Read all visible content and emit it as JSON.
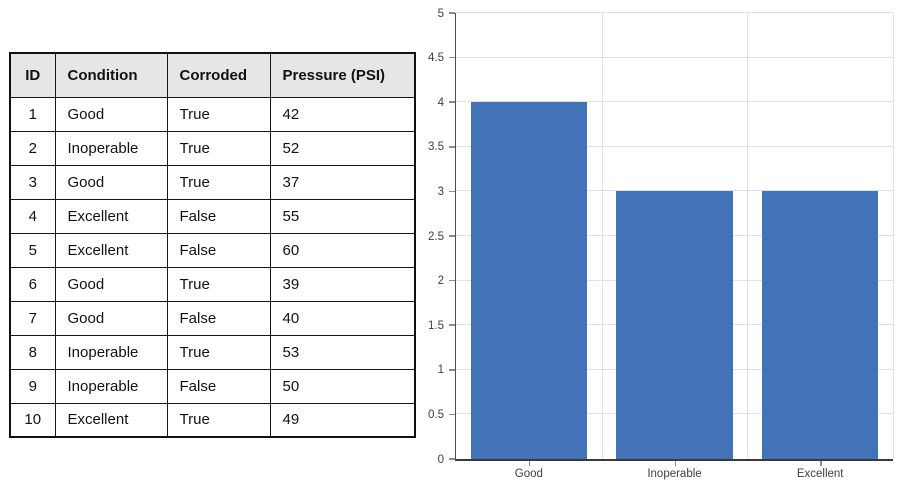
{
  "table": {
    "headers": [
      "ID",
      "Condition",
      "Corroded",
      "Pressure (PSI)"
    ],
    "rows": [
      [
        "1",
        "Good",
        "True",
        "42"
      ],
      [
        "2",
        "Inoperable",
        "True",
        "52"
      ],
      [
        "3",
        "Good",
        "True",
        "37"
      ],
      [
        "4",
        "Excellent",
        "False",
        "55"
      ],
      [
        "5",
        "Excellent",
        "False",
        "60"
      ],
      [
        "6",
        "Good",
        "True",
        "39"
      ],
      [
        "7",
        "Good",
        "False",
        "40"
      ],
      [
        "8",
        "Inoperable",
        "True",
        "53"
      ],
      [
        "9",
        "Inoperable",
        "False",
        "50"
      ],
      [
        "10",
        "Excellent",
        "True",
        "49"
      ]
    ]
  },
  "chart_data": {
    "type": "bar",
    "categories": [
      "Good",
      "Inoperable",
      "Excellent"
    ],
    "values": [
      4,
      3,
      3
    ],
    "title": "",
    "xlabel": "",
    "ylabel": "",
    "ylim": [
      0,
      5
    ],
    "ytick_step": 0.5,
    "ytick_labels": [
      "0",
      "0.5",
      "1",
      "1.5",
      "2",
      "2.5",
      "3",
      "3.5",
      "4",
      "4.5",
      "5"
    ],
    "grid": true,
    "legend_position": "none",
    "bar_color": "#4273b8"
  }
}
